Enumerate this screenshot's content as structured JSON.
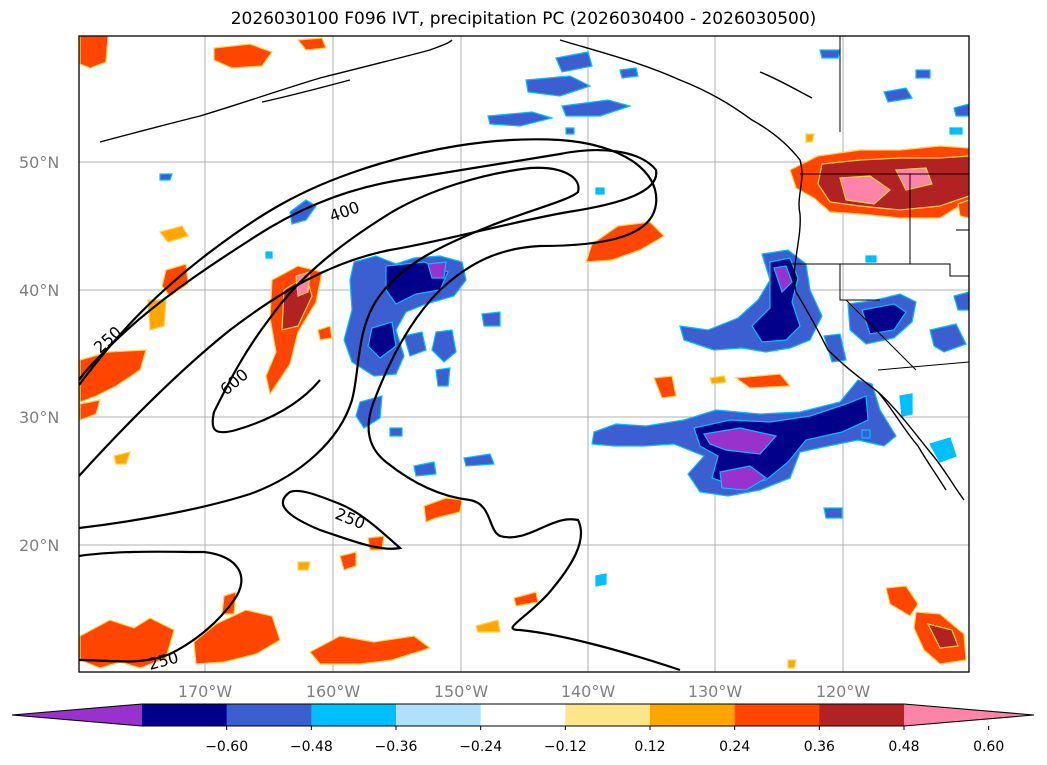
{
  "title": "2026030100 F096 IVT, precipitation PC (2026030400 - 2026030500)",
  "map": {
    "lat_labels": [
      "50°N",
      "40°N",
      "30°N",
      "20°N"
    ],
    "lon_labels": [
      "170°W",
      "160°W",
      "150°W",
      "140°W",
      "130°W",
      "120°W"
    ],
    "contour_labels": [
      "400",
      "250",
      "600",
      "250",
      "250"
    ],
    "gridlines": true
  },
  "colorbar": {
    "orientation": "horizontal",
    "extend": "both",
    "colors": [
      "#9932cc",
      "#00008b",
      "#3b5fd0",
      "#00bfff",
      "#b0e0ff",
      "#ffffff",
      "#fde68a",
      "#ffa500",
      "#ff4500",
      "#b22222",
      "#ff82a9"
    ],
    "tick_labels": [
      "−0.60",
      "−0.48",
      "−0.36",
      "−0.24",
      "−0.12",
      "0.12",
      "0.24",
      "0.36",
      "0.48",
      "0.60"
    ]
  }
}
